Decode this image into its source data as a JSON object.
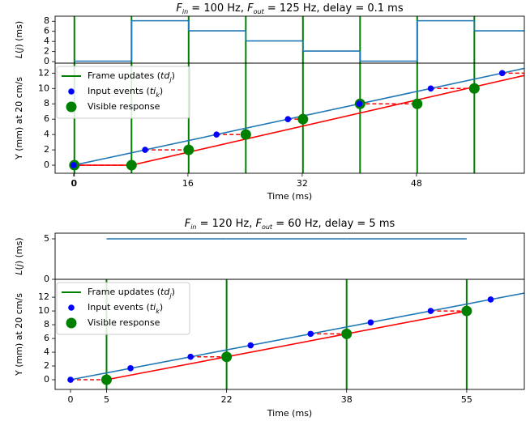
{
  "chart_data": [
    {
      "type": "latency",
      "title": [
        {
          "text": "F",
          "italic": true
        },
        {
          "text": "in",
          "italic": true,
          "sub": true
        },
        {
          "text": " = 100 Hz, "
        },
        {
          "text": "F",
          "italic": true
        },
        {
          "text": "out",
          "italic": true,
          "sub": true
        },
        {
          "text": " = 125 Hz, delay = 0.1 ms"
        }
      ],
      "xlabel": "Time (ms)",
      "xlim": [
        -2.6,
        63.1
      ],
      "xticks": [
        0,
        {
          "value": 0.1,
          "label": "0"
        },
        16,
        32,
        48
      ],
      "legend": "upper left",
      "top": {
        "ylabel": [
          {
            "text": "L",
            "italic": true
          },
          {
            "text": "("
          },
          {
            "text": "j",
            "italic": true
          },
          {
            "text": ") (ms)"
          }
        ],
        "ylim": [
          -0.3,
          9
        ],
        "yticks": [
          0,
          2,
          4,
          6,
          8
        ],
        "color": "#1f77b4",
        "show_frames": true,
        "x": [
          0.1,
          8.1,
          16.1,
          24.1,
          32.1,
          40.1,
          48.1,
          56.1,
          63.1
        ],
        "values": [
          0.1,
          8.1,
          6.1,
          4.1,
          2.1,
          0.1,
          8.1,
          6.1,
          6.1
        ]
      },
      "bottom": {
        "ylabel": "Y (mm) at 20 cm/s",
        "ylim": [
          -1.05,
          13.3
        ],
        "yticks": [
          0,
          2,
          4,
          6,
          8,
          10,
          12
        ],
        "frames": {
          "name": [
            {
              "text": "Frame updates ("
            },
            {
              "text": "td",
              "italic": true
            },
            {
              "text": "j",
              "italic": true,
              "sub": true
            },
            {
              "text": ")"
            }
          ],
          "color": "#008000",
          "x": [
            0.1,
            8.1,
            16.1,
            24.1,
            32.1,
            40.1,
            48.1,
            56.1
          ]
        },
        "inputs": {
          "name": [
            {
              "text": "Input events ("
            },
            {
              "text": "ti",
              "italic": true
            },
            {
              "text": "k",
              "italic": true,
              "sub": true
            },
            {
              "text": ")"
            }
          ],
          "color": "#0000ff",
          "x": [
            0,
            10,
            20,
            30,
            40,
            50,
            60
          ],
          "values": [
            0,
            2,
            4,
            6,
            8,
            10,
            12
          ]
        },
        "responses": {
          "name": "Visible response",
          "color": "#008000",
          "x": [
            0.1,
            8.1,
            16.1,
            24.1,
            32.1,
            40.1,
            48.1,
            56.1
          ],
          "values": [
            0,
            0,
            2,
            4,
            6,
            8,
            8,
            10
          ]
        },
        "motion": {
          "color": "#1f77b4",
          "x": [
            0,
            63.1
          ],
          "values": [
            0,
            12.62
          ]
        },
        "response_line": {
          "color": "#ff0000",
          "x": [
            0.1,
            8.1,
            63.1
          ],
          "values": [
            0,
            0,
            11.7
          ]
        },
        "waits": {
          "color": "#ff0000",
          "x_start": [
            0,
            10,
            20,
            30,
            40,
            50,
            60
          ],
          "x_end": [
            8.1,
            16.1,
            24.1,
            32.1,
            48.1,
            56.1,
            63.1
          ],
          "values": [
            0,
            2,
            4,
            6,
            8,
            10,
            12
          ]
        }
      }
    },
    {
      "type": "latency",
      "title": [
        {
          "text": "F",
          "italic": true
        },
        {
          "text": "in",
          "italic": true,
          "sub": true
        },
        {
          "text": " = 120 Hz, "
        },
        {
          "text": "F",
          "italic": true
        },
        {
          "text": "out",
          "italic": true,
          "sub": true
        },
        {
          "text": " = 60 Hz, delay = 5 ms"
        }
      ],
      "xlabel": "Time (ms)",
      "xlim": [
        -2.14,
        63
      ],
      "xticks": [
        0,
        5,
        {
          "value": 21.67,
          "label": "22"
        },
        {
          "value": 38.33,
          "label": "38"
        },
        55
      ],
      "legend": "upper left",
      "top": {
        "ylabel": [
          {
            "text": "L",
            "italic": true
          },
          {
            "text": "("
          },
          {
            "text": "j",
            "italic": true
          },
          {
            "text": ") (ms)"
          }
        ],
        "ylim": [
          0,
          5.7
        ],
        "yticks": [
          0,
          5
        ],
        "color": "#1f77b4",
        "show_frames": false,
        "x": [
          5,
          21.67,
          38.33,
          55
        ],
        "values": [
          5,
          5,
          5,
          5
        ]
      },
      "bottom": {
        "ylabel": "Y (mm) at 20 cm/s",
        "ylim": [
          -1.41,
          14.6
        ],
        "yticks": [
          0,
          2,
          4,
          6,
          8,
          10,
          12
        ],
        "frames": {
          "name": [
            {
              "text": "Frame updates ("
            },
            {
              "text": "td",
              "italic": true
            },
            {
              "text": "j",
              "italic": true,
              "sub": true
            },
            {
              "text": ")"
            }
          ],
          "color": "#008000",
          "x": [
            5,
            21.67,
            38.33,
            55
          ]
        },
        "inputs": {
          "name": [
            {
              "text": "Input events ("
            },
            {
              "text": "ti",
              "italic": true
            },
            {
              "text": "k",
              "italic": true,
              "sub": true
            },
            {
              "text": ")"
            }
          ],
          "color": "#0000ff",
          "x": [
            0,
            8.33,
            16.67,
            25,
            33.33,
            41.67,
            50,
            58.33
          ],
          "values": [
            0,
            1.67,
            3.33,
            5,
            6.67,
            8.33,
            10,
            11.67
          ]
        },
        "responses": {
          "name": "Visible response",
          "color": "#008000",
          "x": [
            5,
            21.67,
            38.33,
            55
          ],
          "values": [
            0,
            3.33,
            6.67,
            10
          ]
        },
        "motion": {
          "color": "#1f77b4",
          "x": [
            0,
            63
          ],
          "values": [
            0,
            12.6
          ]
        },
        "response_line": {
          "color": "#ff0000",
          "x": [
            5,
            55
          ],
          "values": [
            0,
            10
          ]
        },
        "waits": {
          "color": "#ff0000",
          "x_start": [
            0,
            16.67,
            33.33,
            50
          ],
          "x_end": [
            5,
            21.67,
            38.33,
            55
          ],
          "values": [
            0,
            3.33,
            6.67,
            10
          ]
        }
      }
    }
  ]
}
